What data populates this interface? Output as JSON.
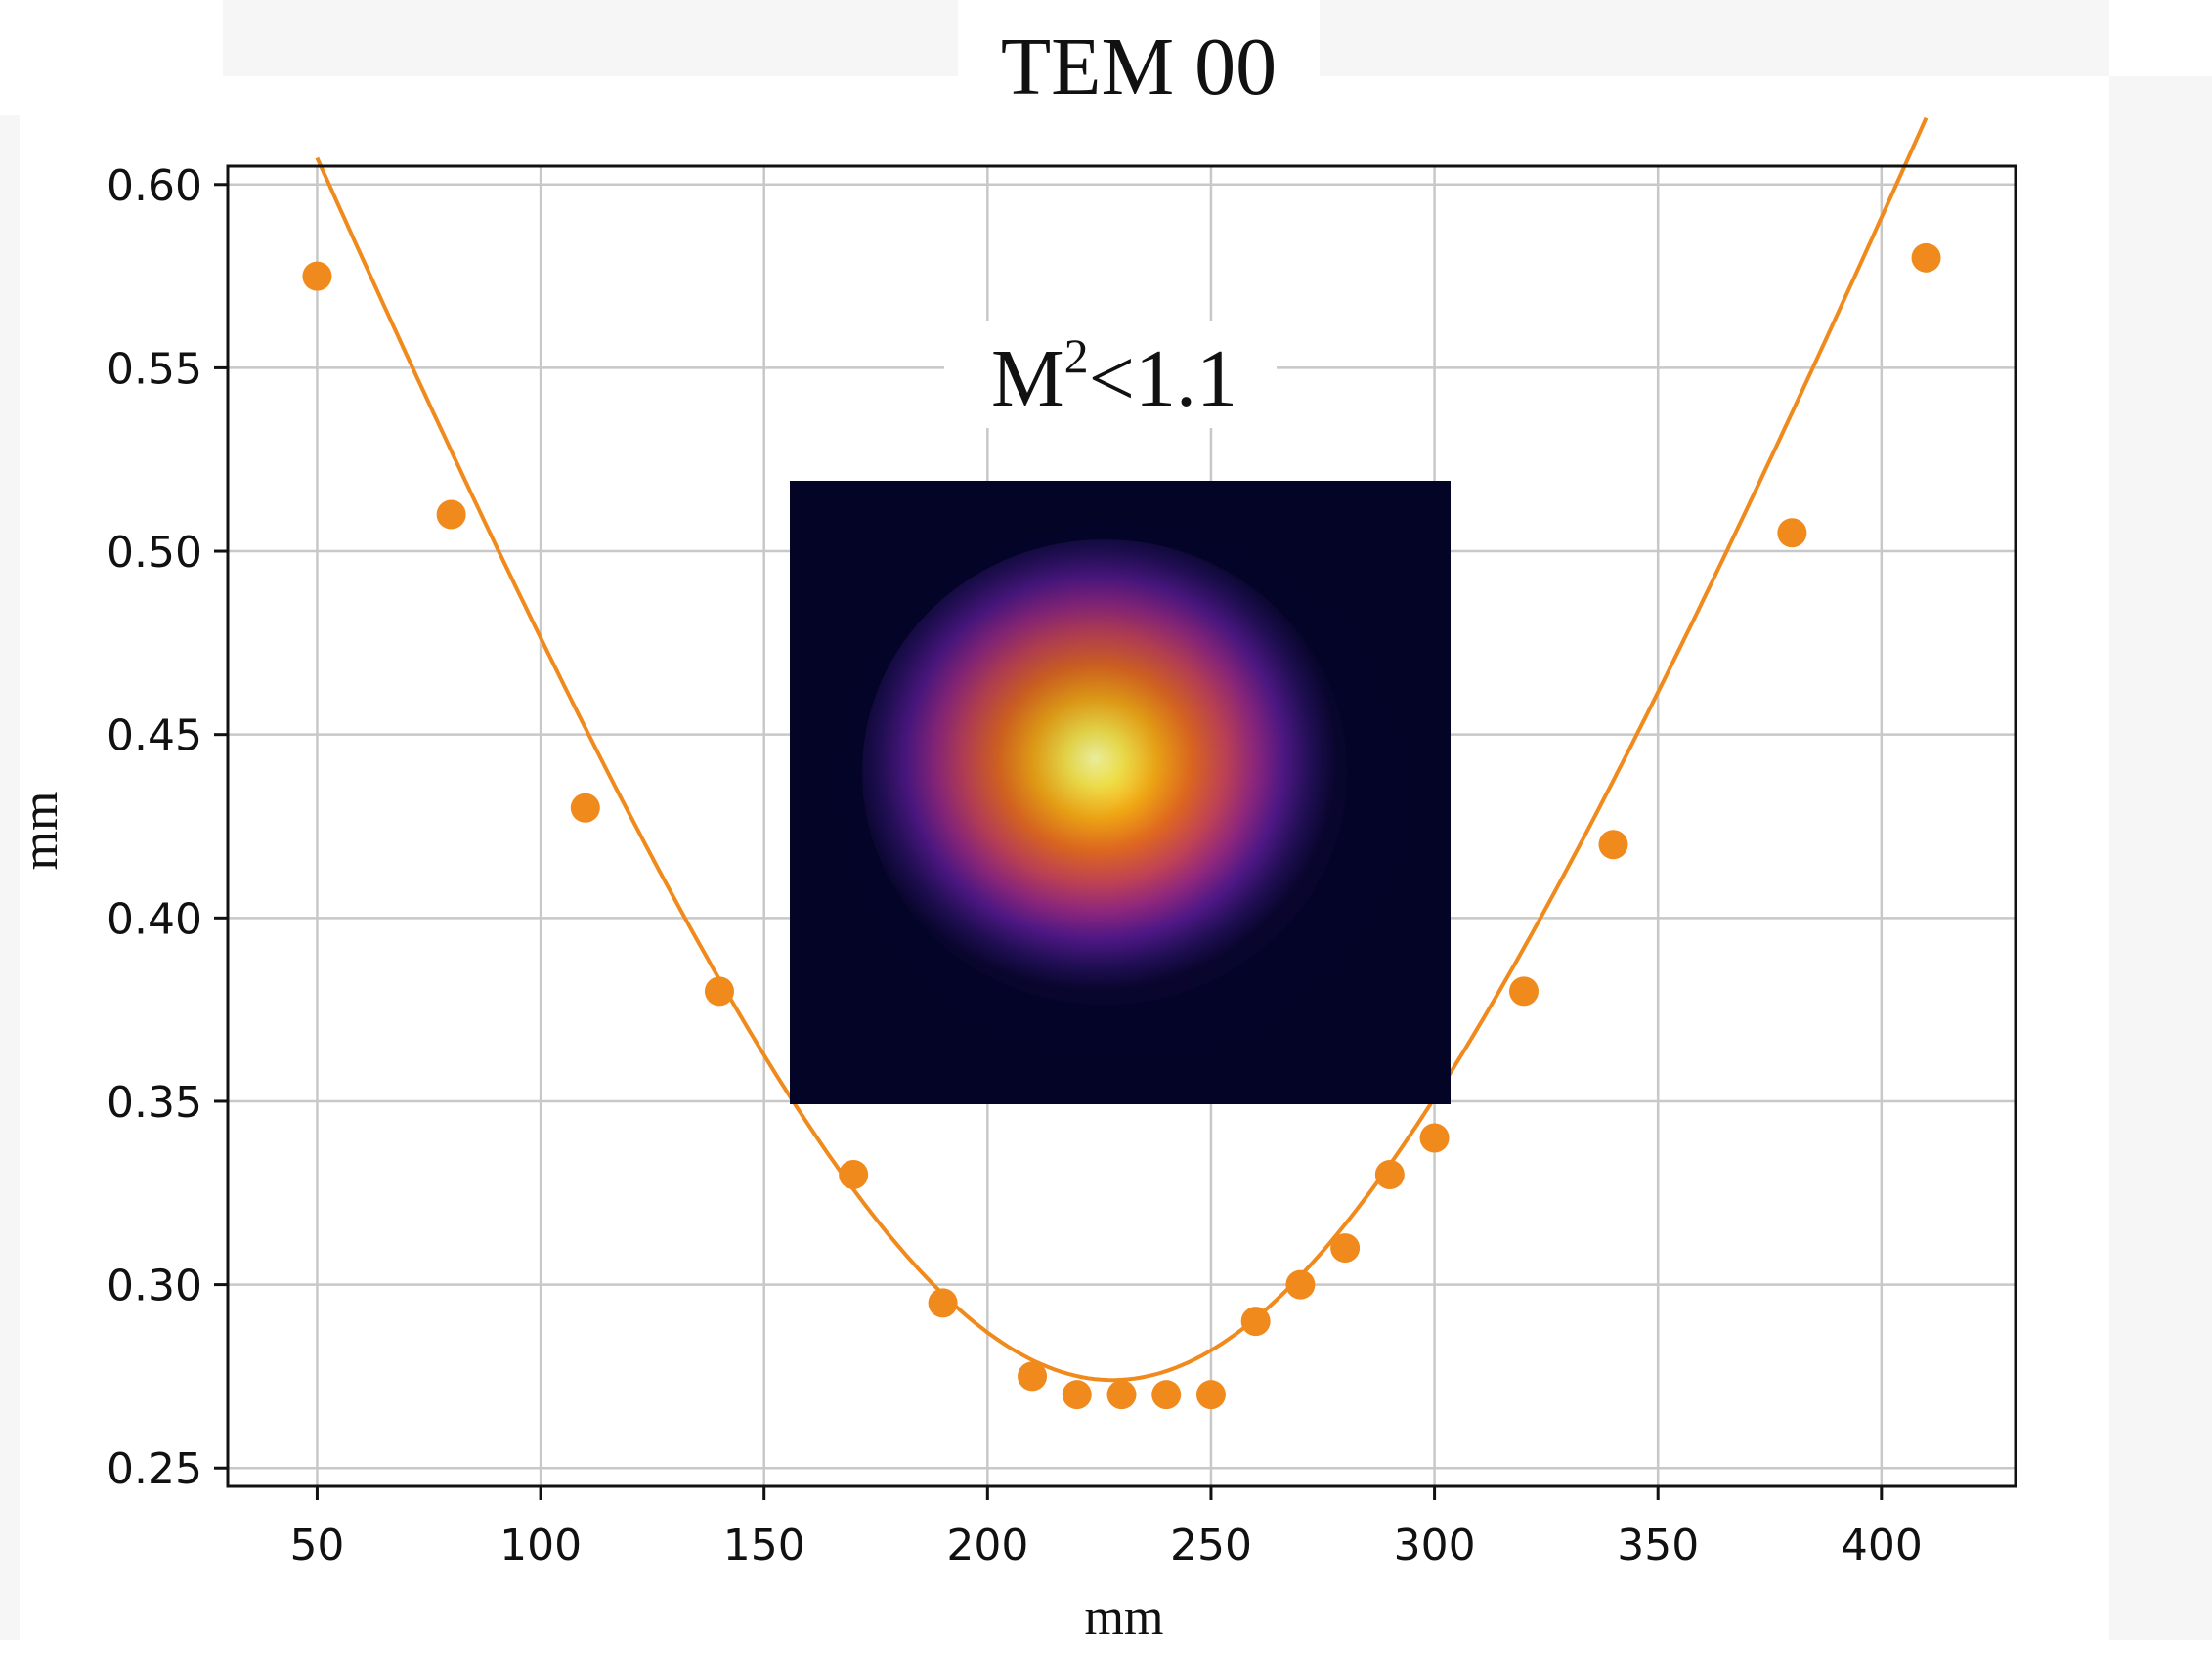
{
  "chart_data": {
    "type": "scatter",
    "title": "TEM 00",
    "annotation_base": "M",
    "annotation_sup": "2",
    "annotation_rest": "<1.1",
    "xlabel": "mm",
    "ylabel": "mm",
    "xlim": [
      30,
      430
    ],
    "ylim": [
      0.245,
      0.605
    ],
    "xticks": [
      50,
      100,
      150,
      200,
      250,
      300,
      350,
      400
    ],
    "yticks": [
      0.25,
      0.3,
      0.35,
      0.4,
      0.45,
      0.5,
      0.55,
      0.6
    ],
    "grid": true,
    "points": {
      "x": [
        50,
        80,
        110,
        140,
        170,
        190,
        210,
        220,
        230,
        240,
        250,
        260,
        270,
        280,
        290,
        300,
        320,
        340,
        380,
        410
      ],
      "y": [
        0.575,
        0.51,
        0.43,
        0.38,
        0.33,
        0.295,
        0.275,
        0.27,
        0.27,
        0.27,
        0.27,
        0.29,
        0.3,
        0.31,
        0.33,
        0.34,
        0.38,
        0.42,
        0.505,
        0.58
      ]
    },
    "fit": {
      "waist": 0.274,
      "waist_position": 228,
      "rayleigh_range": 90
    },
    "colors": {
      "series": "#f08a1c",
      "grid": "#c8c8c8",
      "axes": "#111111"
    },
    "inset": {
      "type": "beam-profile-image",
      "colormap": "inferno"
    }
  }
}
